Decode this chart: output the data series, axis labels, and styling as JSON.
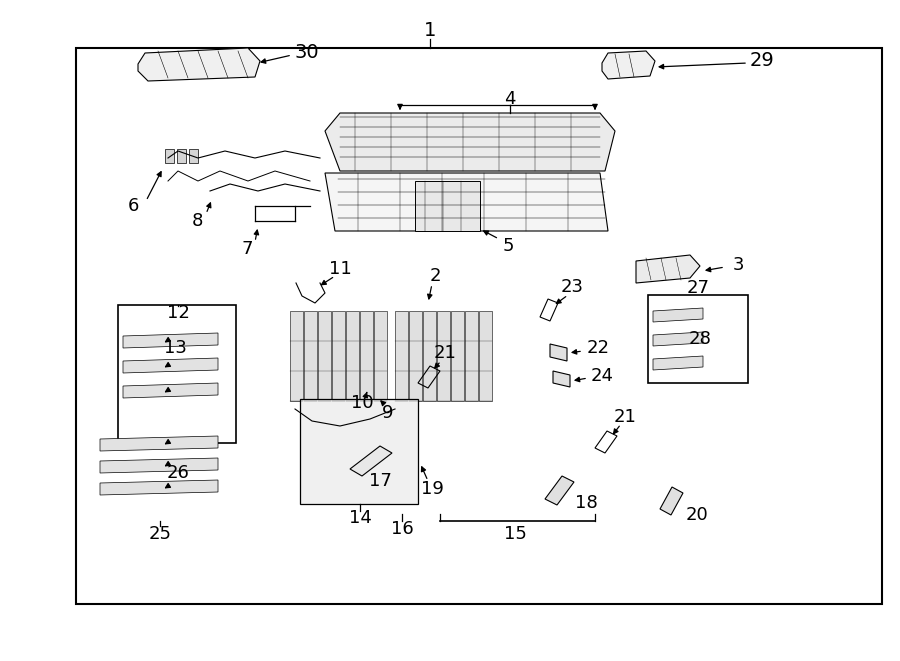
{
  "bg": "#ffffff",
  "fig_w": 9.0,
  "fig_h": 6.61,
  "dpi": 100
}
